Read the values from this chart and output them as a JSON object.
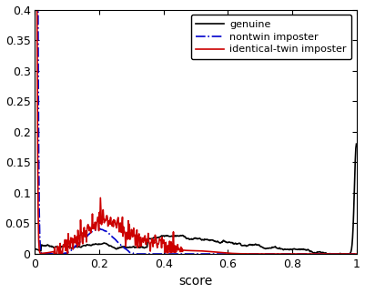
{
  "title": "",
  "xlabel": "score",
  "ylabel": "",
  "xlim": [
    0,
    1
  ],
  "ylim": [
    0,
    0.4
  ],
  "xticks": [
    0,
    0.2,
    0.4,
    0.6,
    0.8,
    1.0
  ],
  "yticks": [
    0,
    0.05,
    0.1,
    0.15,
    0.2,
    0.25,
    0.3,
    0.35,
    0.4
  ],
  "genuine_color": "#000000",
  "genuine_linestyle": "-",
  "genuine_linewidth": 1.2,
  "nontwin_color": "#0000cc",
  "nontwin_linestyle": "-.",
  "nontwin_linewidth": 1.2,
  "twin_color": "#cc0000",
  "twin_linestyle": "-",
  "twin_linewidth": 1.2,
  "background_color": "#ffffff",
  "figsize": [
    4.01,
    3.22
  ],
  "dpi": 100
}
